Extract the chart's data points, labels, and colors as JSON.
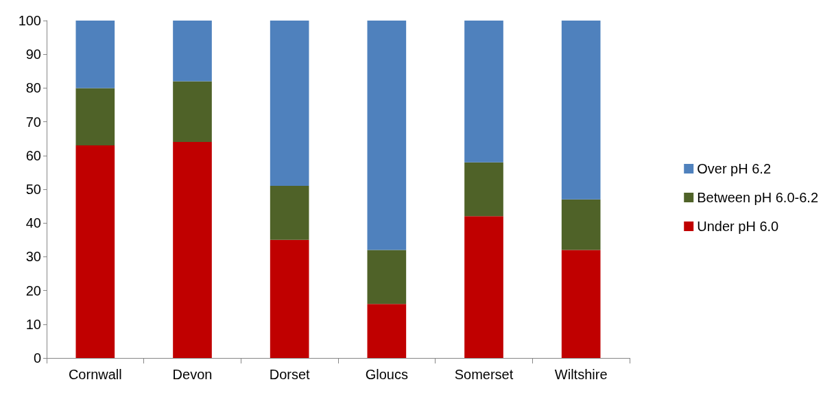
{
  "chart_data": {
    "type": "bar",
    "stacked": true,
    "categories": [
      "Cornwall",
      "Devon",
      "Dorset",
      "Gloucs",
      "Somerset",
      "Wiltshire"
    ],
    "series": [
      {
        "name": "Under pH 6.0",
        "color": "#c00000",
        "values": [
          63,
          64,
          35,
          16,
          42,
          32
        ]
      },
      {
        "name": "Between pH 6.0-6.2",
        "color": "#4f6228",
        "values": [
          17,
          18,
          16,
          16,
          16,
          15
        ]
      },
      {
        "name": "Over pH 6.2",
        "color": "#4f81bd",
        "values": [
          20,
          18,
          49,
          68,
          42,
          53
        ]
      }
    ],
    "ylim": [
      0,
      100
    ],
    "yticks": [
      0,
      10,
      20,
      30,
      40,
      50,
      60,
      70,
      80,
      90,
      100
    ],
    "grid": false,
    "legend": "right"
  }
}
